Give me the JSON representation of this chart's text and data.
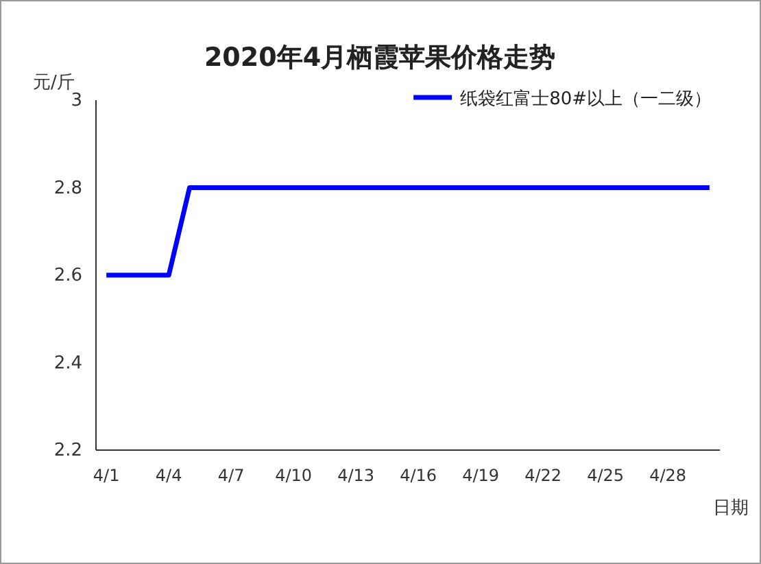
{
  "chart_data": {
    "type": "line",
    "title": "2020年4月栖霞苹果价格走势",
    "xlabel": "日期",
    "ylabel": "元/斤",
    "categories": [
      "4/1",
      null,
      null,
      "4/4",
      null,
      null,
      "4/7",
      null,
      null,
      "4/10",
      null,
      null,
      "4/13",
      null,
      null,
      "4/16",
      null,
      null,
      "4/19",
      null,
      null,
      "4/22",
      null,
      null,
      "4/25",
      null,
      null,
      "4/28",
      null,
      null
    ],
    "series": [
      {
        "name": "纸袋红富士80#以上（一二级）",
        "color": "#0000ff",
        "values": [
          2.6,
          2.6,
          2.6,
          2.6,
          2.8,
          2.8,
          2.8,
          2.8,
          2.8,
          2.8,
          2.8,
          2.8,
          2.8,
          2.8,
          2.8,
          2.8,
          2.8,
          2.8,
          2.8,
          2.8,
          2.8,
          2.8,
          2.8,
          2.8,
          2.8,
          2.8,
          2.8,
          2.8,
          2.8,
          2.8
        ]
      }
    ],
    "ylim": [
      2.2,
      3
    ],
    "yticks": [
      2.2,
      2.4,
      2.6,
      2.8,
      3
    ],
    "grid": false,
    "legend": "top right",
    "marker": "none",
    "line_style": "solid"
  }
}
